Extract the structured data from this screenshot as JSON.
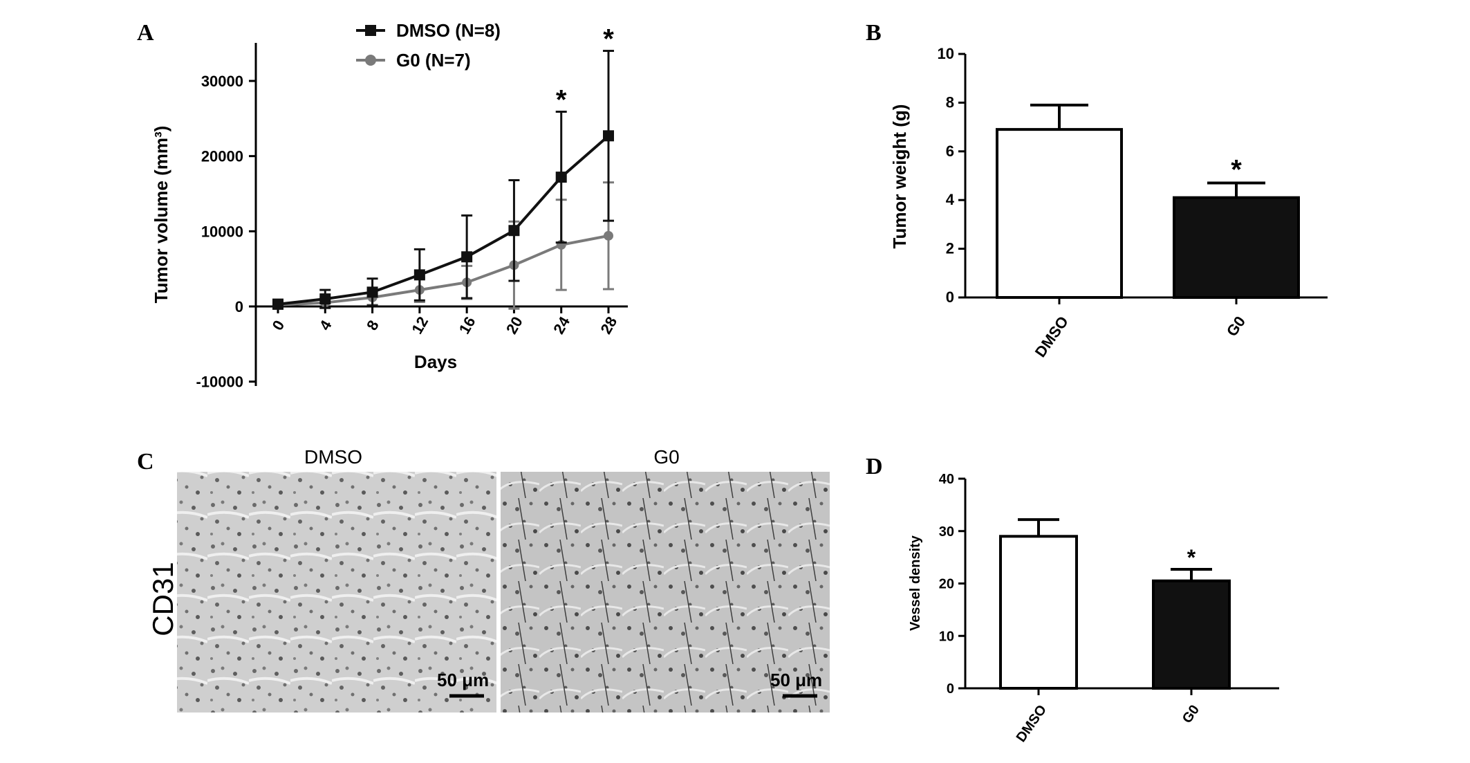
{
  "panels": {
    "A": "A",
    "B": "B",
    "C": "C",
    "D": "D"
  },
  "colors": {
    "dmso": "#111111",
    "g0": "#7a7a7a",
    "bar_dmso": "#ffffff",
    "bar_g0": "#111111"
  },
  "chart_data": [
    {
      "panel": "A",
      "type": "line",
      "xlabel": "Days",
      "ylabel": "Tumor volume (mm³)",
      "x": [
        0,
        4,
        8,
        12,
        16,
        20,
        24,
        28
      ],
      "ylim": [
        -10000,
        35000
      ],
      "yticks": [
        -10000,
        0,
        10000,
        20000,
        30000
      ],
      "legend_position": "top-center",
      "series": [
        {
          "name": "DMSO (N=8)",
          "marker": "square",
          "values": [
            300,
            1000,
            1900,
            4200,
            6600,
            10100,
            17200,
            22700
          ],
          "err": [
            600,
            1200,
            1800,
            3400,
            5500,
            6700,
            8700,
            11300
          ]
        },
        {
          "name": "G0 (N=7)",
          "marker": "circle",
          "values": [
            200,
            500,
            1200,
            2200,
            3200,
            5500,
            8200,
            9400
          ],
          "err": [
            400,
            700,
            1000,
            1600,
            2200,
            5800,
            6000,
            7100
          ]
        }
      ],
      "significance": [
        {
          "x": 24,
          "label": "*"
        },
        {
          "x": 28,
          "label": "*"
        }
      ]
    },
    {
      "panel": "B",
      "type": "bar",
      "ylabel": "Tumor weight (g)",
      "categories": [
        "DMSO",
        "G0"
      ],
      "values": [
        6.9,
        4.1
      ],
      "err": [
        1.0,
        0.6
      ],
      "ylim": [
        0,
        10
      ],
      "yticks": [
        0,
        2,
        4,
        6,
        8,
        10
      ],
      "significance": [
        {
          "category": "G0",
          "label": "*"
        }
      ]
    },
    {
      "panel": "D",
      "type": "bar",
      "ylabel": "Vessel density",
      "categories": [
        "DMSO",
        "G0"
      ],
      "values": [
        29,
        20.5
      ],
      "err": [
        3.2,
        2.2
      ],
      "ylim": [
        0,
        40
      ],
      "yticks": [
        0,
        10,
        20,
        30,
        40
      ],
      "significance": [
        {
          "category": "G0",
          "label": "*"
        }
      ]
    }
  ],
  "images": {
    "stain": "CD31",
    "left_label": "DMSO",
    "right_label": "G0",
    "scale_left": "50 μm",
    "scale_right": "50 μm"
  }
}
